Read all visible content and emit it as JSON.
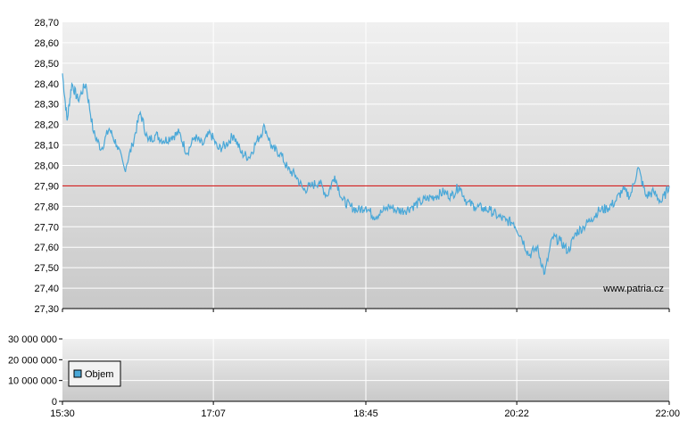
{
  "watermark": "www.patria.cz",
  "colors": {
    "background": "#ffffff",
    "plot_top": "#f0f0f0",
    "plot_bottom": "#c9c9c9",
    "grid": "#ffffff",
    "line": "#4aa8d8",
    "reference": "#cc0000",
    "legend_swatch": "#4aa8d8"
  },
  "chart_data": [
    {
      "type": "line",
      "name": "price",
      "ylim": [
        27.3,
        28.7
      ],
      "y_ticks": [
        "28,70",
        "28,60",
        "28,50",
        "28,40",
        "28,30",
        "28,20",
        "28,10",
        "28,00",
        "27,90",
        "27,80",
        "27,70",
        "27,60",
        "27,50",
        "27,40",
        "27,30"
      ],
      "x_ticks": [
        "15:30",
        "17:07",
        "18:45",
        "20:22",
        "22:00"
      ],
      "reference_value": 27.9,
      "grid": true,
      "series": [
        {
          "x": [
            "15:30",
            "15:33",
            "15:36",
            "15:40",
            "15:45",
            "15:50",
            "15:55",
            "16:00",
            "16:05",
            "16:10",
            "16:15",
            "16:20",
            "16:25",
            "16:30",
            "16:35",
            "16:40",
            "16:45",
            "16:50",
            "16:55",
            "17:00",
            "17:05",
            "17:10",
            "17:15",
            "17:20",
            "17:25",
            "17:30",
            "17:35",
            "17:40",
            "17:45",
            "17:50",
            "17:55",
            "18:00",
            "18:05",
            "18:10",
            "18:15",
            "18:20",
            "18:25",
            "18:30",
            "18:35",
            "18:40",
            "18:45",
            "18:50",
            "18:55",
            "19:00",
            "19:05",
            "19:10",
            "19:15",
            "19:20",
            "19:25",
            "19:30",
            "19:35",
            "19:40",
            "19:45",
            "19:50",
            "19:55",
            "20:00",
            "20:05",
            "20:10",
            "20:15",
            "20:20",
            "20:25",
            "20:30",
            "20:35",
            "20:40",
            "20:45",
            "20:50",
            "20:55",
            "21:00",
            "21:05",
            "21:10",
            "21:15",
            "21:20",
            "21:25",
            "21:30",
            "21:35",
            "21:40",
            "21:45",
            "21:50",
            "21:55",
            "22:00"
          ],
          "values": [
            28.45,
            28.22,
            28.4,
            28.32,
            28.4,
            28.16,
            28.08,
            28.18,
            28.1,
            27.98,
            28.1,
            28.26,
            28.12,
            28.15,
            28.12,
            28.14,
            28.16,
            28.06,
            28.14,
            28.1,
            28.16,
            28.08,
            28.1,
            28.15,
            28.06,
            28.04,
            28.12,
            28.19,
            28.08,
            28.06,
            27.98,
            27.95,
            27.88,
            27.9,
            27.92,
            27.85,
            27.95,
            27.83,
            27.8,
            27.78,
            27.8,
            27.75,
            27.77,
            27.8,
            27.78,
            27.78,
            27.8,
            27.82,
            27.84,
            27.85,
            27.87,
            27.85,
            27.9,
            27.82,
            27.8,
            27.79,
            27.78,
            27.75,
            27.73,
            27.72,
            27.65,
            27.56,
            27.6,
            27.47,
            27.65,
            27.63,
            27.58,
            27.67,
            27.7,
            27.74,
            27.78,
            27.79,
            27.82,
            27.88,
            27.85,
            27.99,
            27.85,
            27.87,
            27.82,
            27.9
          ]
        }
      ]
    },
    {
      "type": "bar",
      "name": "volume",
      "ylim": [
        0,
        30000000
      ],
      "y_ticks": [
        "30 000 000",
        "20 000 000",
        "10 000 000",
        "0"
      ],
      "x_ticks": [
        "15:30",
        "17:07",
        "18:45",
        "20:22",
        "22:00"
      ],
      "legend": "Objem",
      "legend_position": "bottom-left",
      "grid": true,
      "series": [
        {
          "name": "Objem",
          "values": []
        }
      ]
    }
  ]
}
